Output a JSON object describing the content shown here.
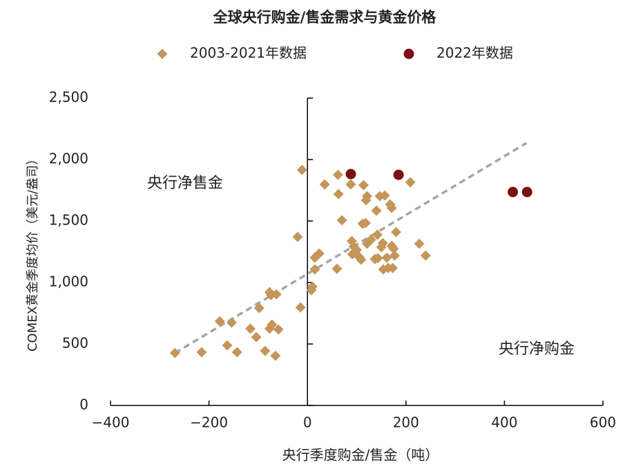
{
  "chart_data": {
    "type": "scatter",
    "title": "全球央行购金/售金需求与黄金价格",
    "x_label": "央行季度购金/售金（吨）",
    "y_label": "COMEX黄金季度均价（美元/盎司）",
    "xlim": [
      -400,
      600
    ],
    "ylim": [
      0,
      2500
    ],
    "xticks": [
      {
        "value": -400,
        "label": "−400"
      },
      {
        "value": -200,
        "label": "−200"
      },
      0,
      200,
      400,
      600
    ],
    "yticks": [
      0,
      500,
      {
        "value": 1000,
        "label": "1,000"
      },
      {
        "value": 1500,
        "label": "1,500"
      },
      {
        "value": 2000,
        "label": "2,000"
      },
      {
        "value": 2500,
        "label": "2,500"
      }
    ],
    "annotations": [
      "央行净售金",
      "央行净购金"
    ],
    "series": [
      {
        "name": "2003-2021年数据",
        "color": "#c4965a",
        "marker": "diamond",
        "x": [
          -269,
          -215,
          -178,
          -154,
          -163,
          -143,
          -116,
          -104,
          -98,
          -86,
          -77,
          -74,
          -77,
          -72,
          -63,
          -65,
          -59,
          -14,
          -20,
          -11,
          8,
          10,
          15,
          24,
          15,
          35,
          62,
          63,
          70,
          60,
          90,
          88,
          94,
          91,
          100,
          105,
          109,
          114,
          119,
          121,
          112,
          118,
          121,
          129,
          137,
          143,
          142,
          140,
          147,
          150,
          153,
          157,
          161,
          154,
          164,
          168,
          171,
          171,
          175,
          173,
          180,
          177,
          209,
          227,
          240
        ],
        "values": [
          427,
          433,
          685,
          674,
          489,
          433,
          624,
          556,
          792,
          444,
          921,
          899,
          624,
          657,
          904,
          404,
          618,
          798,
          1371,
          1916,
          938,
          966,
          1202,
          1236,
          1107,
          1798,
          1876,
          1719,
          1506,
          1112,
          1337,
          1798,
          1292,
          1230,
          1264,
          1208,
          1185,
          1792,
          1669,
          1702,
          1478,
          1483,
          1315,
          1348,
          1191,
          1197,
          1388,
          1584,
          1702,
          1287,
          1320,
          1708,
          1202,
          1107,
          1118,
          1635,
          1607,
          1298,
          1275,
          1118,
          1410,
          1219,
          1815,
          1315,
          1219
        ]
      },
      {
        "name": "2022年数据",
        "color": "#7a0e10",
        "marker": "circle",
        "x": [
          88,
          185,
          417,
          446
        ],
        "values": [
          1882,
          1876,
          1736,
          1736
        ]
      }
    ],
    "trendline": {
      "color": "#a6a6a6",
      "x": [
        -269,
        445
      ],
      "values": [
        427,
        2135
      ]
    }
  }
}
